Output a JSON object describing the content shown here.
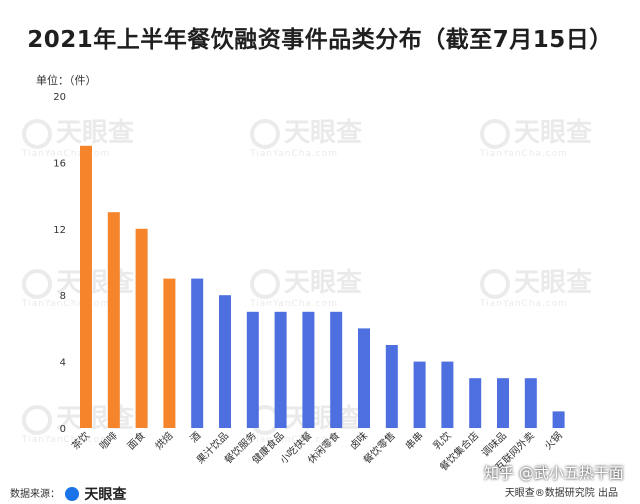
{
  "title": "2021年上半年餐饮融资事件品类分布（截至7月15日）",
  "unit_label": "单位：（件）",
  "watermark": {
    "brand": "天眼查",
    "site": "TianYanCha.com"
  },
  "footer": {
    "source_prefix": "数据来源：",
    "source_brand": "天眼查",
    "credit": "天眼查®数据研究院 出品"
  },
  "overlay_text": "知乎 @武小五热干面",
  "colors": {
    "highlight": "#f5842a",
    "normal": "#4e6fe0",
    "axis_text": "#333333"
  },
  "chart_data": {
    "type": "bar",
    "title": "2021年上半年餐饮融资事件品类分布（截至7月15日）",
    "ylabel": "单位：（件）",
    "ylim": [
      0,
      20
    ],
    "yticks": [
      0,
      4,
      8,
      12,
      16,
      20
    ],
    "grid": false,
    "categories": [
      "茶饮",
      "咖啡",
      "面食",
      "烘焙",
      "酒",
      "果汁饮品",
      "餐饮服务",
      "健康食品",
      "小吃快餐",
      "休闲零食",
      "卤味",
      "餐饮零售",
      "串串",
      "乳饮",
      "餐饮集合店",
      "调味品",
      "互联网外卖",
      "火锅"
    ],
    "values": [
      17,
      13,
      12,
      9,
      9,
      8,
      7,
      7,
      7,
      7,
      6,
      5,
      4,
      4,
      3,
      3,
      3,
      1
    ],
    "highlighted": [
      true,
      true,
      true,
      true,
      false,
      false,
      false,
      false,
      false,
      false,
      false,
      false,
      false,
      false,
      false,
      false,
      false,
      false
    ]
  }
}
